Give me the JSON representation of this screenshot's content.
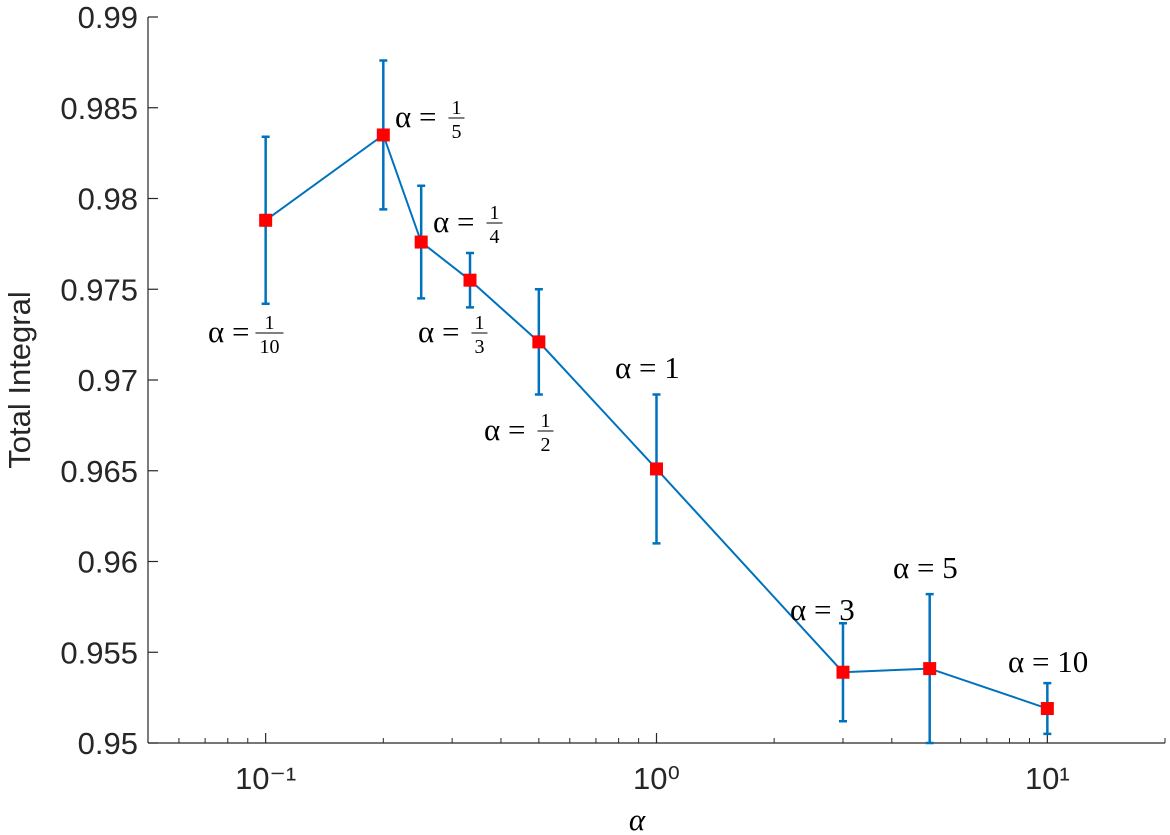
{
  "chart_data": {
    "type": "line",
    "x_label": "α",
    "y_label": "Total Integral",
    "x": [
      0.1,
      0.2,
      0.25,
      0.3333,
      0.5,
      1,
      3,
      5,
      10
    ],
    "series": [
      {
        "color": "#0072bd",
        "marker_color": "#ff0000",
        "values": [
          0.9788,
          0.9835,
          0.9776,
          0.9755,
          0.9721,
          0.9651,
          0.9539,
          0.9541,
          0.9519
        ],
        "errors": [
          0.0046,
          0.0041,
          0.0031,
          0.0015,
          0.0029,
          0.0041,
          0.0027,
          0.0041,
          0.0014
        ]
      }
    ],
    "xscale": "log",
    "xlim": [
      0.05,
      20
    ],
    "xticks": [
      {
        "value": 0.1,
        "label": "10⁻¹"
      },
      {
        "value": 1,
        "label": "10⁰"
      },
      {
        "value": 10,
        "label": "10¹"
      }
    ],
    "xminorticks": [
      0.06,
      0.07,
      0.08,
      0.09,
      0.2,
      0.3,
      0.4,
      0.5,
      0.6,
      0.7,
      0.8,
      0.9,
      2,
      3,
      4,
      5,
      6,
      7,
      8,
      9,
      20
    ],
    "ylim": [
      0.95,
      0.99
    ],
    "yticks": [
      0.95,
      0.955,
      0.96,
      0.965,
      0.97,
      0.975,
      0.98,
      0.985,
      0.99
    ],
    "annotations": [
      {
        "text": "α =",
        "numerator": "1",
        "denominator": "10"
      },
      {
        "text": "α =",
        "numerator": "1",
        "denominator": "5"
      },
      {
        "text": "α =",
        "numerator": "1",
        "denominator": "4"
      },
      {
        "text": "α =",
        "numerator": "1",
        "denominator": "3"
      },
      {
        "text": "α =",
        "numerator": "1",
        "denominator": "2"
      },
      {
        "text": "α = 1"
      },
      {
        "text": "α = 3"
      },
      {
        "text": "α = 5"
      },
      {
        "text": "α = 10"
      }
    ]
  }
}
